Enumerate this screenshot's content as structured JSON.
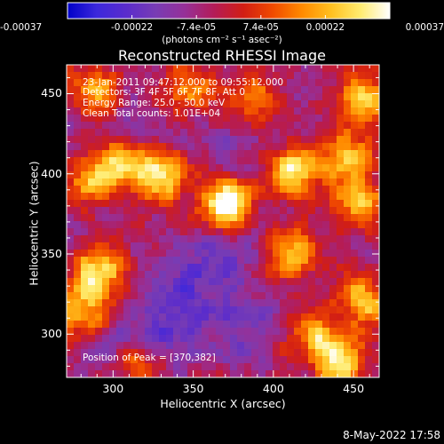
{
  "chart_data": {
    "type": "heatmap",
    "title": "Reconstructed RHESSI Image",
    "xlabel": "Heliocentric X (arcsec)",
    "ylabel": "Heliocentric Y (arcsec)",
    "xlim": [
      271,
      466
    ],
    "ylim": [
      273,
      468
    ],
    "x_ticks": [
      300,
      350,
      400,
      450
    ],
    "y_ticks": [
      300,
      350,
      400,
      450
    ],
    "colorbar": {
      "label": "(photons cm⁻² s⁻¹ asec⁻²)",
      "range": [
        -0.00037,
        0.00037
      ],
      "tick_labels": [
        "-0.00037",
        "-0.00022",
        "-7.4e-05",
        "7.4e-05",
        "0.00022",
        "0.00037"
      ],
      "colormap": [
        "#0000c8",
        "#3c28dc",
        "#5a2ccc",
        "#783cb4",
        "#963098",
        "#b41c58",
        "#d21e14",
        "#f04a00",
        "#ff8a00",
        "#ffc020",
        "#ffec70",
        "#ffffff"
      ]
    },
    "annotations": [
      "23-Jan-2011 09:47:12.000 to 09:55:12.000",
      "Detectors: 3F 4F 5F 6F 7F 8F, Att 0",
      "Energy Range: 25.0 - 50.0 keV",
      "Clean    Total counts: 1.01E+04",
      "Position of Peak = [370,382]"
    ],
    "peak": {
      "x": 370,
      "y": 382,
      "value": 0.00037
    },
    "bright_sources": [
      {
        "x": 370,
        "y": 382,
        "amp": 1.0
      },
      {
        "x": 329,
        "y": 398,
        "amp": 0.85
      },
      {
        "x": 305,
        "y": 408,
        "amp": 0.7
      },
      {
        "x": 288,
        "y": 395,
        "amp": 0.55
      },
      {
        "x": 412,
        "y": 402,
        "amp": 0.75
      },
      {
        "x": 445,
        "y": 410,
        "amp": 0.65
      },
      {
        "x": 455,
        "y": 445,
        "amp": 0.7
      },
      {
        "x": 290,
        "y": 452,
        "amp": 0.55
      },
      {
        "x": 345,
        "y": 452,
        "amp": 0.55
      },
      {
        "x": 385,
        "y": 448,
        "amp": 0.5
      },
      {
        "x": 455,
        "y": 380,
        "amp": 0.6
      },
      {
        "x": 410,
        "y": 350,
        "amp": 0.65
      },
      {
        "x": 455,
        "y": 322,
        "amp": 0.7
      },
      {
        "x": 290,
        "y": 340,
        "amp": 0.8
      },
      {
        "x": 282,
        "y": 315,
        "amp": 0.6
      },
      {
        "x": 425,
        "y": 300,
        "amp": 0.55
      },
      {
        "x": 442,
        "y": 283,
        "amp": 0.85
      },
      {
        "x": 318,
        "y": 280,
        "amp": 0.45
      }
    ],
    "dark_regions": [
      {
        "x": 330,
        "y": 300,
        "amp": 0.6
      },
      {
        "x": 345,
        "y": 330,
        "amp": 0.5
      },
      {
        "x": 370,
        "y": 345,
        "amp": 0.4
      },
      {
        "x": 310,
        "y": 430,
        "amp": 0.35
      },
      {
        "x": 375,
        "y": 420,
        "amp": 0.3
      },
      {
        "x": 380,
        "y": 300,
        "amp": 0.4
      }
    ]
  },
  "footer": {
    "timestamp": "8-May-2022 17:58"
  }
}
